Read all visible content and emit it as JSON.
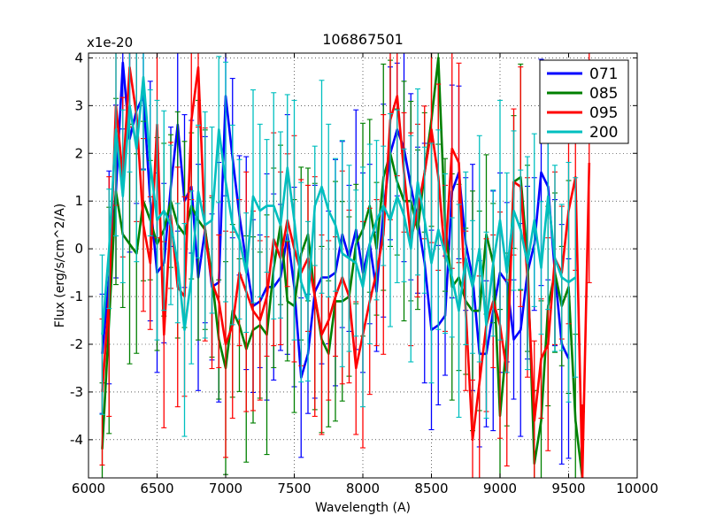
{
  "chart_data": {
    "type": "line",
    "title": "106867501",
    "xlabel": "Wavelength (A)",
    "ylabel": "Flux (erg/s/cm^2/A)",
    "y_scale_label": "x1e-20",
    "xlim": [
      6000,
      10000
    ],
    "ylim": [
      -4.8,
      4.1
    ],
    "x_ticks": [
      6000,
      6500,
      7000,
      7500,
      8000,
      8500,
      9000,
      9500,
      10000
    ],
    "x_tick_labels": [
      "6000",
      "6500",
      "7000",
      "7500",
      "8000",
      "8500",
      "9000",
      "9500",
      "10000"
    ],
    "y_ticks": [
      -4,
      -3,
      -2,
      -1,
      0,
      1,
      2,
      3,
      4
    ],
    "y_tick_labels": [
      "-4",
      "-3",
      "-2",
      "-1",
      "0",
      "1",
      "2",
      "3",
      "4"
    ],
    "grid": true,
    "legend_position": "top-right",
    "x_start": 6100,
    "x_step": 50,
    "series": [
      {
        "name": "071",
        "color": "#0000ff",
        "values": [
          -2.2,
          -0.6,
          1.2,
          3.9,
          2.3,
          2.9,
          3.2,
          1.0,
          -0.5,
          -0.3,
          1.3,
          2.6,
          1.0,
          1.3,
          -0.6,
          0.4,
          -0.8,
          -0.7,
          3.2,
          1.9,
          0.7,
          -0.3,
          -1.2,
          -1.1,
          -0.8,
          -0.8,
          -0.6,
          0.3,
          -0.8,
          -2.7,
          -2.2,
          -0.9,
          -0.6,
          -0.6,
          -0.5,
          0.3,
          -0.2,
          0.4,
          -0.5,
          0.1,
          -0.9,
          0.8,
          2.0,
          2.5,
          2.1,
          1.3,
          0.6,
          -0.3,
          -1.7,
          -1.6,
          -1.4,
          1.2,
          1.6,
          0.1,
          -0.6,
          -2.2,
          -2.2,
          -1.3,
          -0.5,
          -0.7,
          -1.9,
          -1.7,
          -0.5,
          0.1,
          1.6,
          1.3,
          -0.5,
          -2.0,
          -2.3
        ]
      },
      {
        "name": "085",
        "color": "#008000",
        "values": [
          -4.2,
          -1.5,
          1.2,
          0.3,
          0.1,
          -0.1,
          1.0,
          0.6,
          0.1,
          0.4,
          1.0,
          0.5,
          0.3,
          0.9,
          0.6,
          0.4,
          -0.6,
          -1.9,
          -2.5,
          -1.3,
          -1.6,
          -2.1,
          -1.7,
          -1.6,
          -1.8,
          -0.4,
          0.5,
          -1.1,
          -1.2,
          -0.1,
          0.3,
          -1.0,
          -1.9,
          -2.2,
          -1.1,
          -1.1,
          -1.0,
          0.1,
          0.4,
          0.9,
          0.0,
          1.5,
          2.0,
          1.4,
          1.0,
          1.0,
          0.4,
          1.6,
          2.7,
          4.0,
          0.5,
          -0.8,
          -0.6,
          -1.1,
          -1.3,
          -1.3,
          0.3,
          -0.3,
          -3.5,
          -1.9,
          1.4,
          1.5,
          -0.2,
          -4.5,
          -3.6,
          -1.2,
          -0.5,
          -1.2,
          -0.8,
          -3.6,
          -4.8
        ]
      },
      {
        "name": "095",
        "color": "#ff0000",
        "values": [
          -3.0,
          -1.0,
          3.0,
          1.5,
          3.8,
          2.8,
          0.5,
          -0.3,
          2.6,
          -1.8,
          0.7,
          -0.8,
          -1.0,
          2.7,
          3.8,
          0.3,
          -0.7,
          -1.1,
          -2.0,
          -1.6,
          -0.5,
          -0.9,
          -1.3,
          -1.5,
          -1.0,
          0.2,
          -0.2,
          0.6,
          0.0,
          -0.5,
          -0.2,
          -1.0,
          -1.8,
          -1.5,
          -1.0,
          -0.6,
          -1.0,
          -2.5,
          -1.8,
          -1.1,
          -0.5,
          0.3,
          2.7,
          3.2,
          1.6,
          0.2,
          0.8,
          1.6,
          2.5,
          1.5,
          -0.2,
          2.1,
          1.8,
          -1.3,
          -4.0,
          -2.8,
          -1.6,
          -1.1,
          -1.6,
          -2.6,
          1.4,
          1.3,
          -0.6,
          -3.6,
          -2.3,
          -2.0,
          -0.2,
          -0.5,
          0.8,
          1.5,
          -4.8,
          1.8
        ]
      },
      {
        "name": "200",
        "color": "#00bfbf",
        "values": [
          -1.8,
          0.0,
          2.5,
          1.1,
          3.0,
          2.1,
          3.6,
          1.8,
          0.6,
          0.8,
          0.5,
          -0.3,
          -1.7,
          -0.6,
          1.2,
          0.5,
          0.6,
          2.5,
          1.4,
          0.5,
          0.2,
          -0.5,
          1.1,
          0.8,
          0.9,
          0.9,
          0.5,
          1.7,
          0.6,
          -0.7,
          -1.1,
          0.9,
          1.3,
          0.8,
          0.5,
          -0.1,
          -0.2,
          -0.3,
          -0.8,
          0.1,
          0.6,
          0.9,
          0.6,
          1.1,
          0.7,
          0.0,
          1.4,
          0.6,
          -0.3,
          0.4,
          -0.1,
          -0.6,
          -1.3,
          -0.2,
          -0.8,
          0.0,
          -1.6,
          -0.3,
          0.6,
          -0.5,
          0.8,
          0.4,
          -0.3,
          0.6,
          -0.4,
          1.1,
          -0.2,
          -0.6,
          -0.7,
          -0.6
        ]
      }
    ]
  }
}
